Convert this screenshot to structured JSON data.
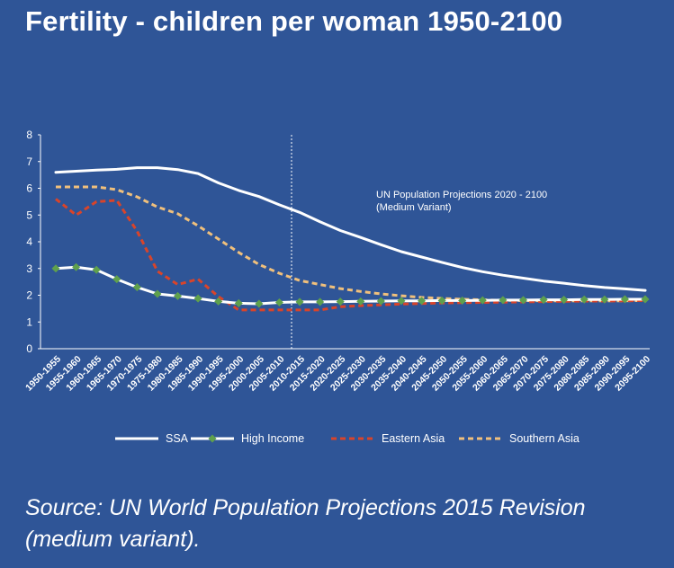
{
  "title": "Fertility - children per woman 1950-2100",
  "source": "Source: UN World Population Projections 2015 Revision (medium variant).",
  "chart_data": {
    "type": "line",
    "title": "Fertility - children per woman 1950-2100",
    "xlabel": "",
    "ylabel": "",
    "ylim": [
      0,
      8
    ],
    "yticks": [
      0,
      1,
      2,
      3,
      4,
      5,
      6,
      7,
      8
    ],
    "grid": false,
    "legend": "bottom",
    "categories": [
      "1950-1955",
      "1955-1960",
      "1960-1965",
      "1965-1970",
      "1970-1975",
      "1975-1980",
      "1980-1985",
      "1985-1990",
      "1990-1995",
      "1995-2000",
      "2000-2005",
      "2005-2010",
      "2010-2015",
      "2015-2020",
      "2020-2025",
      "2025-2030",
      "2030-2035",
      "2035-2040",
      "2040-2045",
      "2045-2050",
      "2050-2055",
      "2055-2060",
      "2060-2065",
      "2065-2070",
      "2070-2075",
      "2075-2080",
      "2080-2085",
      "2085-2090",
      "2090-2095",
      "2095-2100"
    ],
    "projection_start_index": 12,
    "annotation": {
      "line1": "UN Population Projections 2020 - 2100",
      "line2": "(Medium Variant)"
    },
    "series": [
      {
        "name": "SSA",
        "color": "#ffffff",
        "style": "solid",
        "values": [
          6.6,
          6.64,
          6.68,
          6.71,
          6.77,
          6.77,
          6.7,
          6.55,
          6.2,
          5.92,
          5.69,
          5.38,
          5.1,
          4.75,
          4.42,
          4.16,
          3.89,
          3.63,
          3.43,
          3.23,
          3.04,
          2.88,
          2.75,
          2.64,
          2.53,
          2.45,
          2.36,
          2.29,
          2.24,
          2.18
        ]
      },
      {
        "name": "High Income",
        "color": "#ffffff",
        "marker": "#5fa04d",
        "style": "solid-marker",
        "values": [
          3.0,
          3.05,
          2.95,
          2.6,
          2.3,
          2.05,
          1.97,
          1.88,
          1.77,
          1.7,
          1.68,
          1.73,
          1.75,
          1.75,
          1.76,
          1.77,
          1.78,
          1.79,
          1.79,
          1.8,
          1.8,
          1.81,
          1.82,
          1.82,
          1.83,
          1.83,
          1.84,
          1.84,
          1.85,
          1.85
        ]
      },
      {
        "name": "Eastern Asia",
        "color": "#d9442a",
        "style": "dash",
        "values": [
          5.6,
          5.0,
          5.5,
          5.55,
          4.4,
          2.9,
          2.4,
          2.6,
          1.95,
          1.45,
          1.45,
          1.45,
          1.45,
          1.45,
          1.57,
          1.61,
          1.64,
          1.67,
          1.69,
          1.71,
          1.72,
          1.73,
          1.74,
          1.75,
          1.76,
          1.77,
          1.78,
          1.78,
          1.79,
          1.8
        ]
      },
      {
        "name": "Southern Asia",
        "color": "#f0c07c",
        "style": "dash",
        "values": [
          6.05,
          6.05,
          6.05,
          5.95,
          5.68,
          5.3,
          5.05,
          4.6,
          4.1,
          3.6,
          3.15,
          2.82,
          2.55,
          2.4,
          2.25,
          2.14,
          2.05,
          1.98,
          1.92,
          1.88,
          1.85,
          1.83,
          1.81,
          1.8,
          1.79,
          1.79,
          1.79,
          1.79,
          1.79,
          1.8
        ]
      }
    ]
  }
}
